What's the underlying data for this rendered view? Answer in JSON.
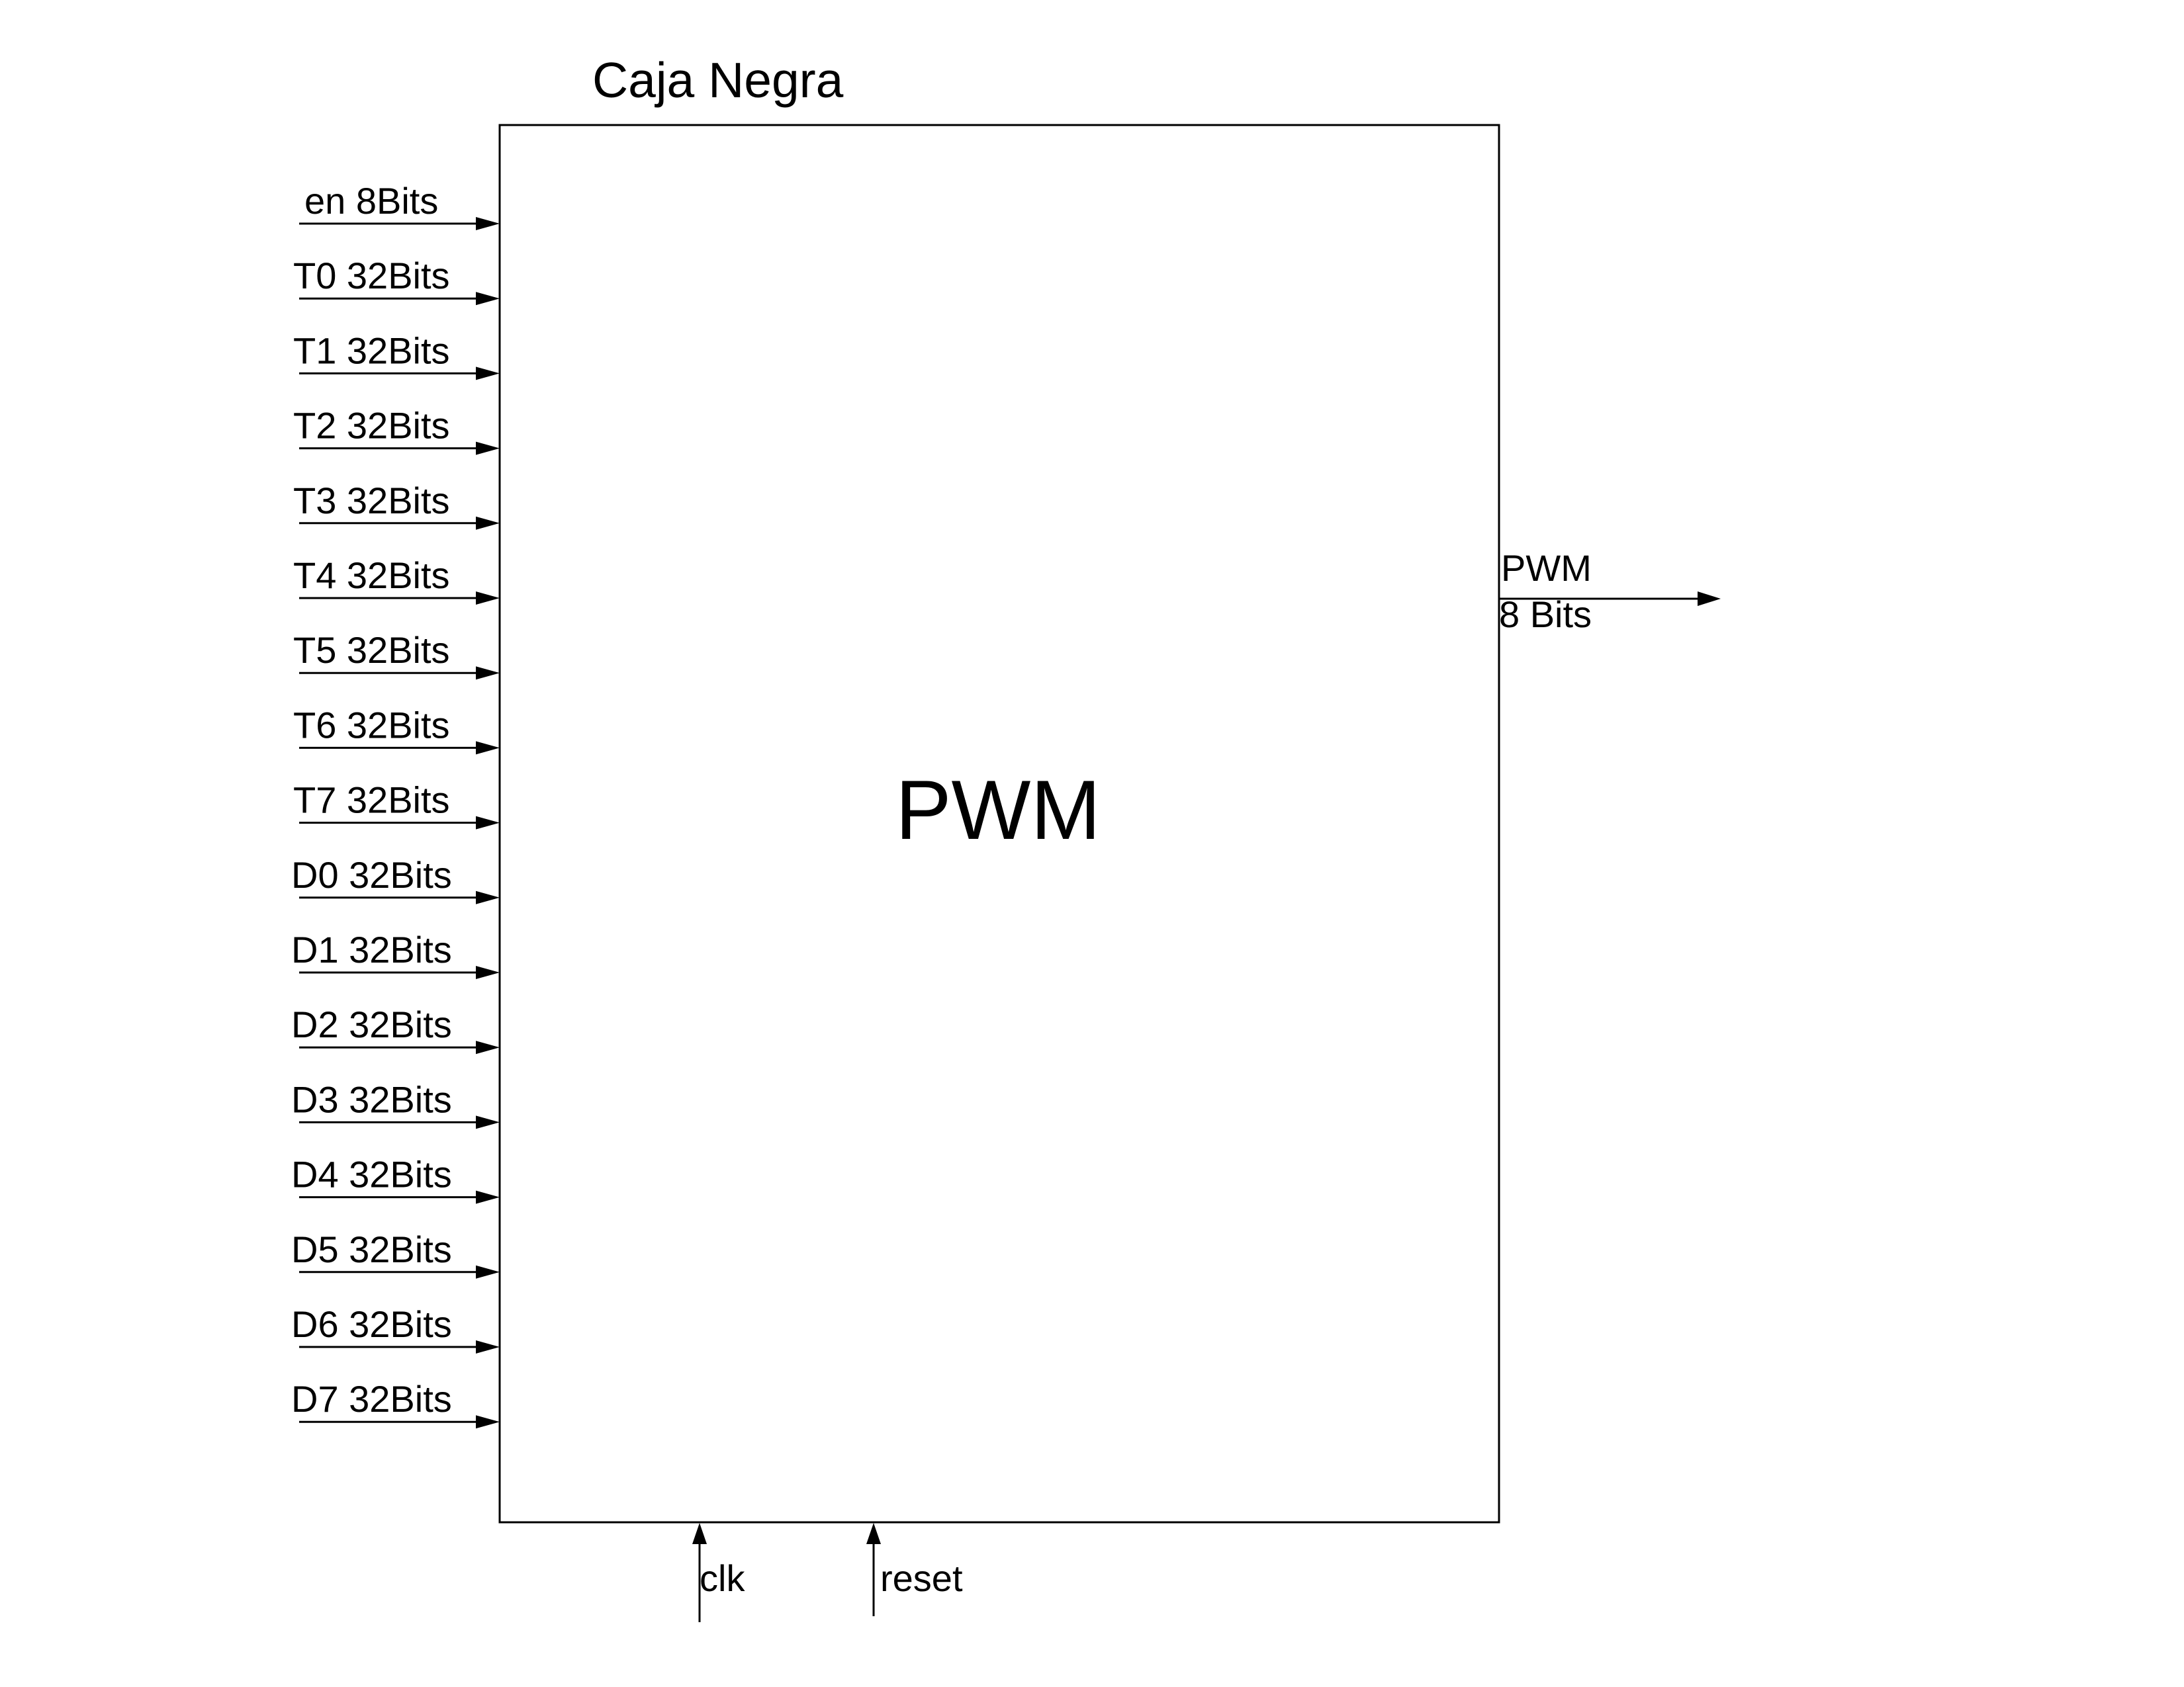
{
  "diagram": {
    "title": "Caja Negra",
    "block_label": "PWM",
    "inputs": [
      "en 8Bits",
      "T0 32Bits",
      "T1 32Bits",
      "T2 32Bits",
      "T3 32Bits",
      "T4 32Bits",
      "T5 32Bits",
      "T6 32Bits",
      "T7 32Bits",
      "D0 32Bits",
      "D1 32Bits",
      "D2 32Bits",
      "D3 32Bits",
      "D4 32Bits",
      "D5 32Bits",
      "D6 32Bits",
      "D7 32Bits"
    ],
    "output": {
      "name": "PWM",
      "width": "8 Bits"
    },
    "control_inputs": [
      "clk",
      "reset"
    ]
  }
}
